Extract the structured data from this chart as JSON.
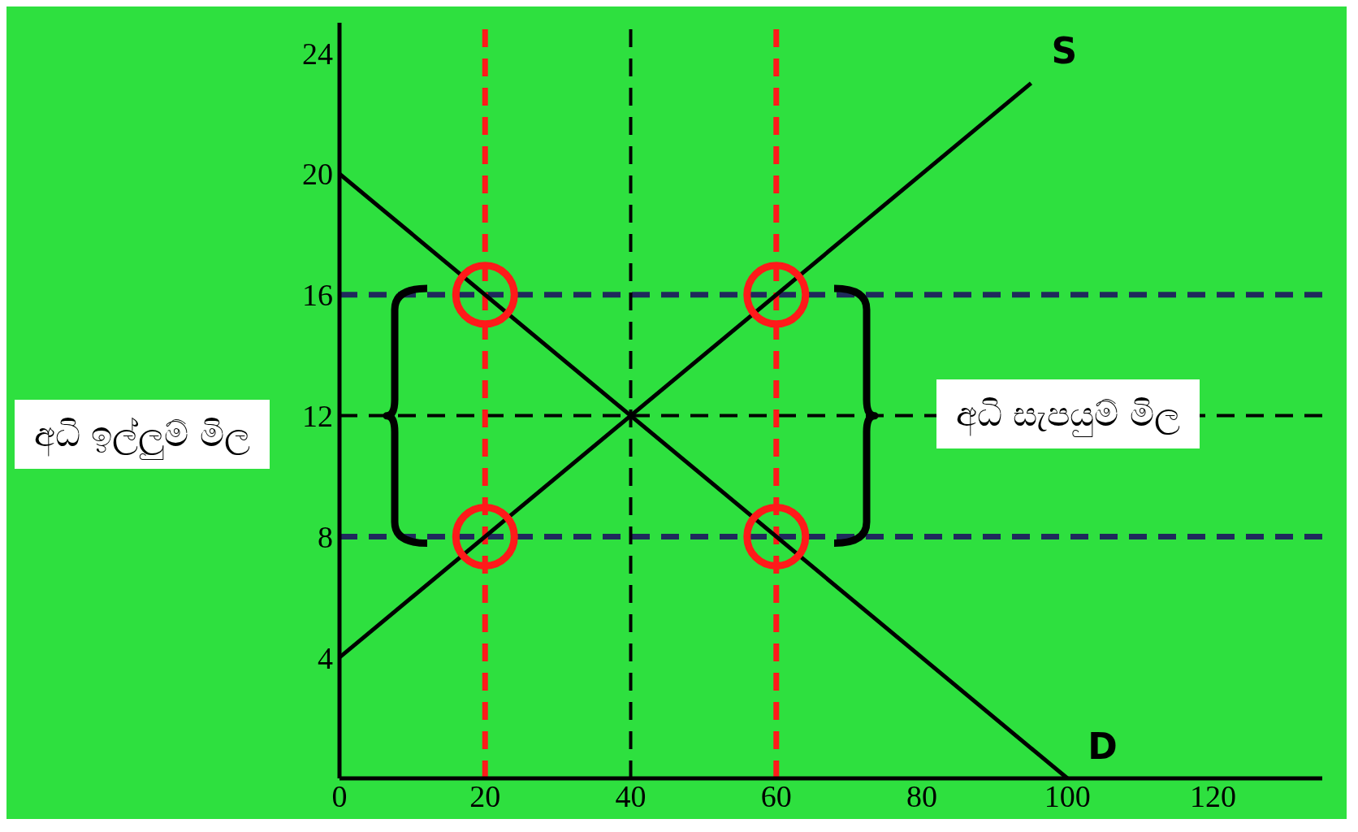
{
  "chart_data": {
    "type": "line",
    "series": [
      {
        "color": "#000000",
        "x": [
          0,
          100
        ],
        "values": [
          20,
          0
        ]
      },
      {
        "color": "#000000",
        "x": [
          0,
          95
        ],
        "values": [
          4,
          23
        ]
      },
      {
        "type": "scatter",
        "color": "#ff1a1a",
        "marker": "circle",
        "x": [
          20,
          60,
          20,
          60
        ],
        "values": [
          16,
          16,
          8,
          8
        ]
      }
    ],
    "xlim": [
      0,
      135
    ],
    "ylim": [
      0,
      25
    ],
    "xticks": [
      0,
      20,
      40,
      60,
      80,
      100,
      120
    ],
    "yticks": [
      4,
      8,
      12,
      16,
      20,
      24
    ],
    "ref_lines": [
      {
        "axis": "y",
        "value": 16,
        "color": "#1f2a5c",
        "line_style": "dashed"
      },
      {
        "axis": "y",
        "value": 8,
        "color": "#1f2a5c",
        "line_style": "dashed"
      },
      {
        "axis": "y",
        "value": 12,
        "color": "#000000",
        "line_style": "dashed"
      },
      {
        "axis": "x",
        "value": 40,
        "color": "#000000",
        "line_style": "dashed"
      },
      {
        "axis": "x",
        "value": 20,
        "color": "#ff1a1a",
        "line_style": "dashed"
      },
      {
        "axis": "x",
        "value": 60,
        "color": "#ff1a1a",
        "line_style": "dashed"
      }
    ],
    "annotations": [
      {
        "text": "S",
        "x": 95,
        "y": 23
      },
      {
        "text": "D",
        "x": 100,
        "y": 0
      },
      "අධි ඉල්ලුම් මිල",
      "අධි සැපයුම් මිල"
    ],
    "grid": false,
    "legend": false
  }
}
